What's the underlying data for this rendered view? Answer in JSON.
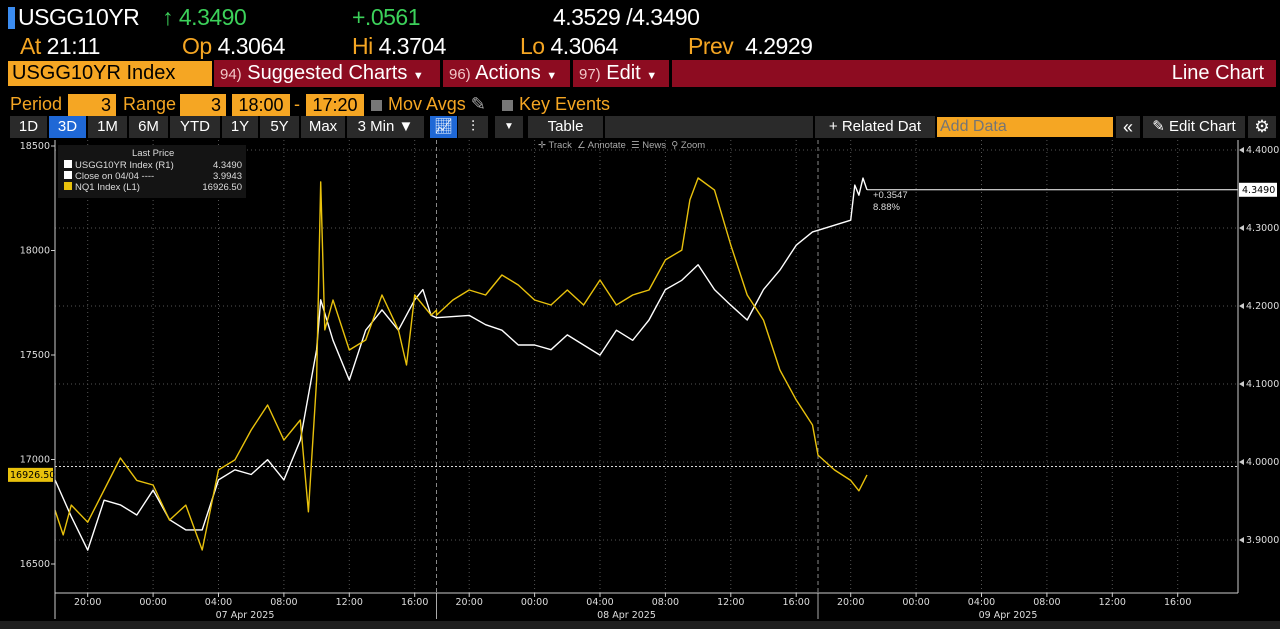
{
  "header": {
    "ticker": "USGG10YR",
    "arrow": "↑",
    "last": "4.3490",
    "change": "+.0561",
    "bid_ask": "4.3529 /4.3490",
    "at_label": "At",
    "at": "21:11",
    "op_label": "Op",
    "op": "4.3064",
    "hi_label": "Hi",
    "hi": "4.3704",
    "lo_label": "Lo",
    "lo": "4.3064",
    "prev_label": "Prev",
    "prev": "4.2929"
  },
  "menu": {
    "security": "USGG10YR Index",
    "suggested_num": "94)",
    "suggested": "Suggested Charts",
    "actions_num": "96)",
    "actions": "Actions",
    "edit_num": "97)",
    "edit": "Edit",
    "chart_type": "Line Chart"
  },
  "controls": {
    "period_label": "Period",
    "period": "3",
    "range_label": "Range",
    "range": "3",
    "start": "18:00",
    "dash": "-",
    "end": "17:20",
    "mov_avgs": "Mov Avgs",
    "key_events": "Key Events"
  },
  "toolbar": {
    "ranges": [
      "1D",
      "3D",
      "1M",
      "6M",
      "YTD",
      "1Y",
      "5Y",
      "Max"
    ],
    "selected": "3D",
    "interval": "3 Min ▼",
    "table": "Table",
    "related": "+ Related Dat",
    "add_data_placeholder": "Add Data",
    "collapse": "«",
    "edit_chart": "Edit Chart"
  },
  "chart_tools": {
    "track": "Track",
    "annotate": "Annotate",
    "news": "News",
    "zoom": "Zoom"
  },
  "legend": {
    "title": "Last Price",
    "items": [
      {
        "label": "USGG10YR Index  (R1)",
        "value": "4.3490",
        "color": "#ffffff"
      },
      {
        "label": "Close on 04/04 ----",
        "value": "3.9943",
        "color": "#ffffff"
      },
      {
        "label": "NQ1 Index  (L1)",
        "value": "16926.50",
        "color": "#e8c10c"
      }
    ]
  },
  "annotation": {
    "change": "+0.3547",
    "pct": "8.88%"
  },
  "chart_data": {
    "type": "line",
    "left_axis": {
      "ticks": [
        16500,
        17000,
        17500,
        18000,
        18500
      ],
      "range": [
        16450,
        18530
      ],
      "last_label": "16926.50"
    },
    "right_axis": {
      "ticks": [
        "3.9000",
        "4.0000",
        "4.1000",
        "4.2000",
        "4.3000",
        "4.4000"
      ],
      "range": [
        3.846,
        4.4
      ],
      "last_label": "4.3490"
    },
    "x_ticks": [
      "20:00",
      "00:00",
      "04:00",
      "08:00",
      "12:00",
      "16:00"
    ],
    "dates": [
      "07 Apr 2025",
      "08 Apr 2025",
      "09 Apr 2025"
    ],
    "session": [
      "18:00",
      "17:20"
    ],
    "reference_line": {
      "name": "Close on 04/04",
      "value": 3.9943
    },
    "series": [
      {
        "name": "USGG10YR Index",
        "axis": "right",
        "color": "#ffffff",
        "points": [
          [
            "04-06 18:00",
            3.977
          ],
          [
            "04-06 19:00",
            3.93
          ],
          [
            "04-06 20:00",
            3.887
          ],
          [
            "04-06 21:00",
            3.951
          ],
          [
            "04-06 22:00",
            3.945
          ],
          [
            "04-06 23:00",
            3.932
          ],
          [
            "04-07 00:00",
            3.964
          ],
          [
            "04-07 01:00",
            3.926
          ],
          [
            "04-07 02:00",
            3.913
          ],
          [
            "04-07 03:00",
            3.913
          ],
          [
            "04-07 04:00",
            3.977
          ],
          [
            "04-07 05:00",
            3.99
          ],
          [
            "04-07 06:00",
            3.984
          ],
          [
            "04-07 07:00",
            4.003
          ],
          [
            "04-07 08:00",
            3.977
          ],
          [
            "04-07 09:00",
            4.028
          ],
          [
            "04-07 10:00",
            4.144
          ],
          [
            "04-07 10:15",
            4.208
          ],
          [
            "04-07 11:00",
            4.156
          ],
          [
            "04-07 12:00",
            4.105
          ],
          [
            "04-07 13:00",
            4.169
          ],
          [
            "04-07 14:00",
            4.195
          ],
          [
            "04-07 15:00",
            4.169
          ],
          [
            "04-07 16:00",
            4.208
          ],
          [
            "04-07 16:30",
            4.221
          ],
          [
            "04-07 17:00",
            4.188
          ],
          [
            "04-07 17:20",
            4.185
          ],
          [
            "04-07 20:00",
            4.188
          ],
          [
            "04-07 21:00",
            4.176
          ],
          [
            "04-07 22:00",
            4.169
          ],
          [
            "04-07 23:00",
            4.15
          ],
          [
            "04-08 00:00",
            4.15
          ],
          [
            "04-08 01:00",
            4.144
          ],
          [
            "04-08 02:00",
            4.163
          ],
          [
            "04-08 03:00",
            4.15
          ],
          [
            "04-08 04:00",
            4.137
          ],
          [
            "04-08 05:00",
            4.169
          ],
          [
            "04-08 06:00",
            4.156
          ],
          [
            "04-08 07:00",
            4.182
          ],
          [
            "04-08 08:00",
            4.221
          ],
          [
            "04-08 09:00",
            4.233
          ],
          [
            "04-08 10:00",
            4.253
          ],
          [
            "04-08 11:00",
            4.221
          ],
          [
            "04-08 12:00",
            4.201
          ],
          [
            "04-08 13:00",
            4.182
          ],
          [
            "04-08 14:00",
            4.221
          ],
          [
            "04-08 15:00",
            4.246
          ],
          [
            "04-08 16:00",
            4.278
          ],
          [
            "04-08 17:00",
            4.295
          ],
          [
            "04-08 17:20",
            4.297
          ],
          [
            "04-08 20:00",
            4.31
          ],
          [
            "04-08 20:15",
            4.355
          ],
          [
            "04-08 20:30",
            4.342
          ],
          [
            "04-08 20:45",
            4.364
          ],
          [
            "04-08 21:00",
            4.349
          ]
        ]
      },
      {
        "name": "NQ1 Index",
        "axis": "left",
        "color": "#e8c10c",
        "points": [
          [
            "04-06 18:00",
            16758
          ],
          [
            "04-06 18:30",
            16639
          ],
          [
            "04-06 19:00",
            16782
          ],
          [
            "04-06 20:00",
            16700
          ],
          [
            "04-06 21:00",
            16854
          ],
          [
            "04-06 22:00",
            17007
          ],
          [
            "04-06 23:00",
            16900
          ],
          [
            "04-07 00:00",
            16878
          ],
          [
            "04-07 01:00",
            16710
          ],
          [
            "04-07 02:00",
            16782
          ],
          [
            "04-07 03:00",
            16567
          ],
          [
            "04-07 04:00",
            16950
          ],
          [
            "04-07 05:00",
            16998
          ],
          [
            "04-07 06:00",
            17141
          ],
          [
            "04-07 07:00",
            17261
          ],
          [
            "04-07 08:00",
            17093
          ],
          [
            "04-07 09:00",
            17189
          ],
          [
            "04-07 09:30",
            16750
          ],
          [
            "04-07 10:00",
            17380
          ],
          [
            "04-07 10:15",
            18328
          ],
          [
            "04-07 10:30",
            17620
          ],
          [
            "04-07 11:00",
            17763
          ],
          [
            "04-07 12:00",
            17524
          ],
          [
            "04-07 13:00",
            17572
          ],
          [
            "04-07 14:00",
            17787
          ],
          [
            "04-07 15:00",
            17620
          ],
          [
            "04-07 15:30",
            17452
          ],
          [
            "04-07 16:00",
            17787
          ],
          [
            "04-07 17:00",
            17691
          ],
          [
            "04-07 17:20",
            17715
          ],
          [
            "04-07 18:00",
            17691
          ],
          [
            "04-07 19:00",
            17763
          ],
          [
            "04-07 20:00",
            17811
          ],
          [
            "04-07 21:00",
            17787
          ],
          [
            "04-07 22:00",
            17883
          ],
          [
            "04-07 23:00",
            17835
          ],
          [
            "04-08 00:00",
            17763
          ],
          [
            "04-08 01:00",
            17739
          ],
          [
            "04-08 02:00",
            17811
          ],
          [
            "04-08 03:00",
            17739
          ],
          [
            "04-08 04:00",
            17859
          ],
          [
            "04-08 05:00",
            17739
          ],
          [
            "04-08 06:00",
            17787
          ],
          [
            "04-08 07:00",
            17811
          ],
          [
            "04-08 08:00",
            17955
          ],
          [
            "04-08 09:00",
            18002
          ],
          [
            "04-08 09:30",
            18242
          ],
          [
            "04-08 10:00",
            18347
          ],
          [
            "04-08 11:00",
            18289
          ],
          [
            "04-08 12:00",
            18026
          ],
          [
            "04-08 13:00",
            17787
          ],
          [
            "04-08 14:00",
            17667
          ],
          [
            "04-08 15:00",
            17428
          ],
          [
            "04-08 16:00",
            17285
          ],
          [
            "04-08 17:00",
            17165
          ],
          [
            "04-08 17:20",
            17021
          ],
          [
            "04-08 19:00",
            16950
          ],
          [
            "04-08 20:00",
            16900
          ],
          [
            "04-08 20:30",
            16850
          ],
          [
            "04-08 21:00",
            16926.5
          ]
        ]
      }
    ]
  }
}
